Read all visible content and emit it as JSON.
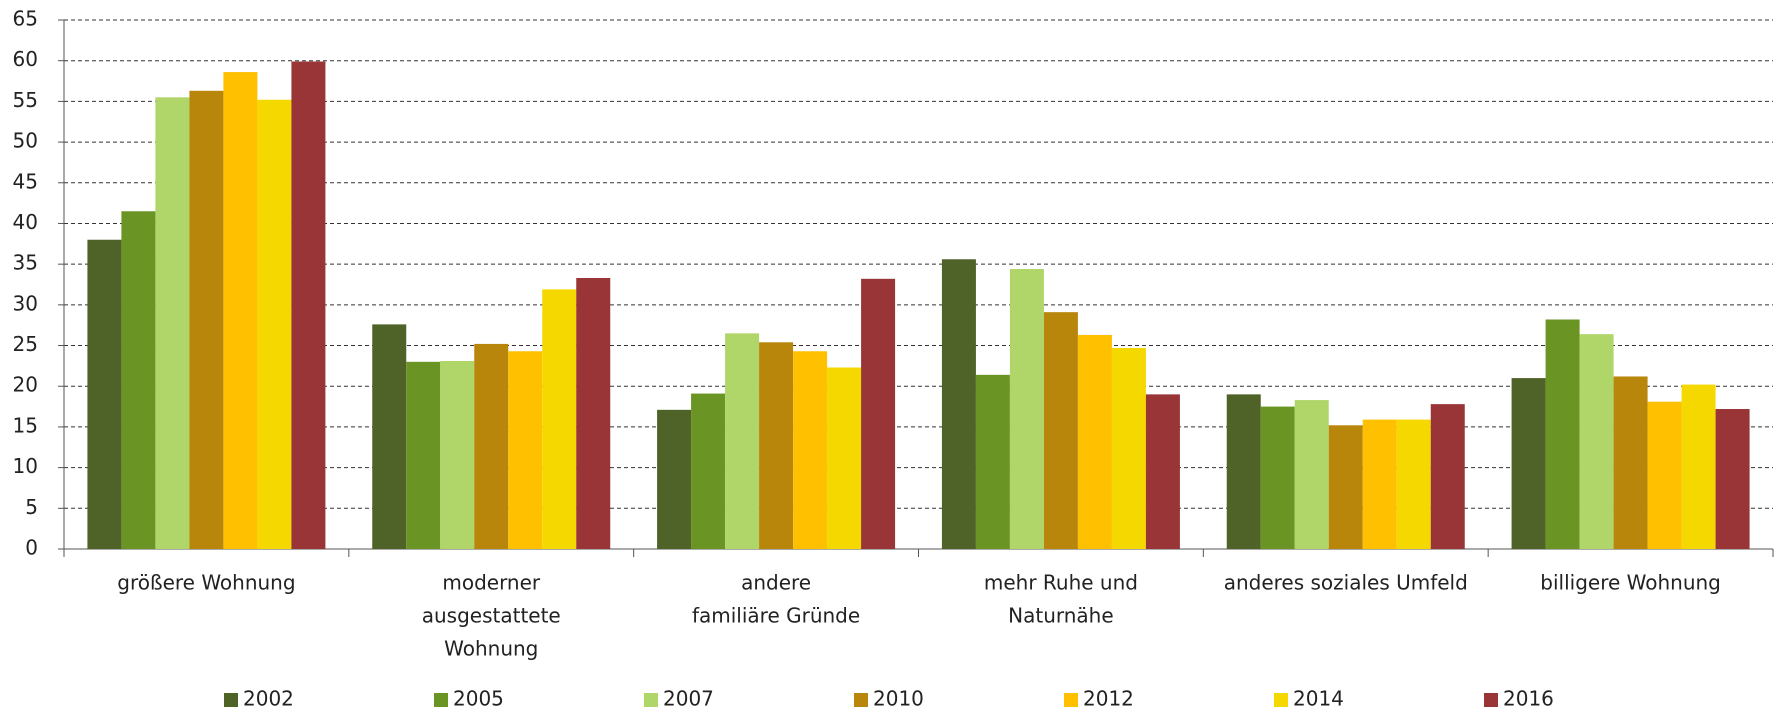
{
  "chart_data": {
    "type": "bar",
    "categories": [
      [
        "größere Wohnung"
      ],
      [
        "moderner",
        "ausgestattete",
        "Wohnung"
      ],
      [
        "andere",
        "familiäre Gründe"
      ],
      [
        "mehr Ruhe und",
        "Naturnähe"
      ],
      [
        "anderes soziales Umfeld"
      ],
      [
        "billigere Wohnung"
      ]
    ],
    "series": [
      {
        "name": "2002",
        "color": "#4f6228",
        "values": [
          38,
          27.6,
          17.1,
          35.6,
          19,
          21
        ]
      },
      {
        "name": "2005",
        "color": "#6a9423",
        "values": [
          41.5,
          23,
          19.1,
          21.4,
          17.5,
          28.2
        ]
      },
      {
        "name": "2007",
        "color": "#b0d66a",
        "values": [
          55.5,
          23.1,
          26.5,
          34.4,
          18.3,
          26.4
        ]
      },
      {
        "name": "2010",
        "color": "#b8860b",
        "values": [
          56.3,
          25.2,
          25.4,
          29.1,
          15.2,
          21.2
        ]
      },
      {
        "name": "2012",
        "color": "#ffc000",
        "values": [
          58.6,
          24.3,
          24.3,
          26.3,
          15.9,
          18.1
        ]
      },
      {
        "name": "2014",
        "color": "#f5d800",
        "values": [
          55.2,
          31.9,
          22.3,
          24.7,
          15.9,
          20.2
        ]
      },
      {
        "name": "2016",
        "color": "#993536",
        "values": [
          59.9,
          33.3,
          33.2,
          19,
          17.8,
          17.2
        ]
      }
    ],
    "ylim": [
      0,
      65
    ],
    "yticks": [
      0,
      5,
      10,
      15,
      20,
      25,
      30,
      35,
      40,
      45,
      50,
      55,
      60,
      65
    ],
    "grid": true,
    "legend": "bottom"
  }
}
